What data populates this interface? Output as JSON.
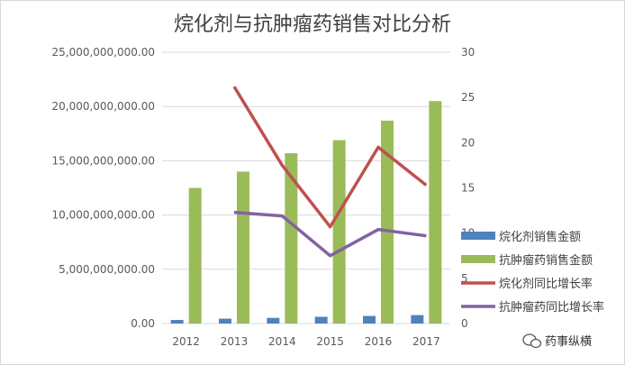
{
  "chart_data": {
    "type": "bar",
    "title": "烷化剂与抗肿瘤药销售对比分析",
    "categories": [
      "2012",
      "2013",
      "2014",
      "2015",
      "2016",
      "2017"
    ],
    "series": [
      {
        "name": "烷化剂销售金额",
        "type": "bar",
        "axis": "left",
        "color": "#4f81bd",
        "values": [
          330000000,
          450000000,
          520000000,
          620000000,
          700000000,
          780000000
        ]
      },
      {
        "name": "抗肿瘤药销售金额",
        "type": "bar",
        "axis": "left",
        "color": "#9bbb59",
        "values": [
          12500000000,
          14000000000,
          15700000000,
          16900000000,
          18700000000,
          20500000000
        ]
      },
      {
        "name": "烷化剂同比增长率",
        "type": "line",
        "axis": "right",
        "color": "#c0504d",
        "values": [
          null,
          26.2,
          17.5,
          10.7,
          19.5,
          15.3
        ]
      },
      {
        "name": "抗肿瘤药同比增长率",
        "type": "line",
        "axis": "right",
        "color": "#8064a2",
        "values": [
          null,
          12.3,
          11.9,
          7.5,
          10.4,
          9.7
        ]
      }
    ],
    "y_left": {
      "min": 0,
      "max": 25000000000,
      "step": 5000000000,
      "tick_labels": [
        "0.00",
        "5,000,000,000.00",
        "10,000,000,000.00",
        "15,000,000,000.00",
        "20,000,000,000.00",
        "25,000,000,000.00"
      ]
    },
    "y_right": {
      "min": 0,
      "max": 30,
      "step": 5,
      "tick_labels": [
        "0",
        "5",
        "10",
        "15",
        "20",
        "25",
        "30"
      ]
    },
    "grid": true,
    "legend_position": "right-bottom"
  },
  "watermark": {
    "text": "药事纵横",
    "icon": "wechat-icon"
  }
}
